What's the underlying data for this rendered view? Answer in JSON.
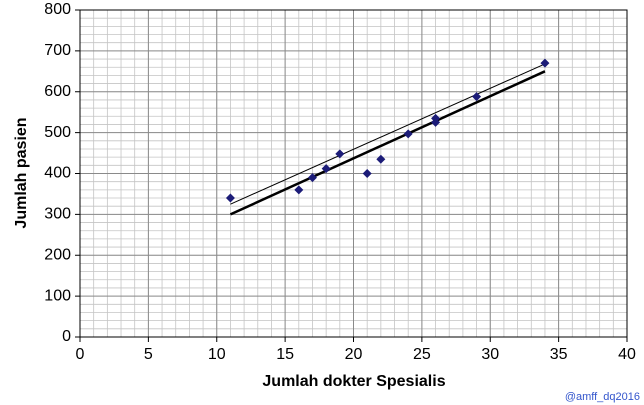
{
  "chart_data": {
    "type": "scatter",
    "x_label": "Jumlah dokter Spesialis",
    "y_label": "Jumlah pasien",
    "annotation": "@amff_dq2016",
    "x": [
      11,
      16,
      17,
      18,
      19,
      21,
      22,
      24,
      26,
      26,
      29,
      34
    ],
    "values": [
      340,
      360,
      390,
      412,
      448,
      400,
      435,
      497,
      525,
      535,
      588,
      670
    ],
    "color": "#1c1c78",
    "trend_lines": [
      {
        "x": [
          11,
          34
        ],
        "values": [
          300,
          650
        ],
        "color": "#000000"
      },
      {
        "x": [
          11,
          34
        ],
        "values": [
          325,
          668
        ],
        "color": "#000000"
      }
    ],
    "xlim": [
      0,
      40
    ],
    "ylim": [
      0,
      800
    ],
    "xticks": [
      0,
      5,
      10,
      15,
      20,
      25,
      30,
      35,
      40
    ],
    "yticks": [
      0,
      100,
      200,
      300,
      400,
      500,
      600,
      700,
      800
    ],
    "grid": true,
    "minor_grid": {
      "x": 1,
      "y": 20
    }
  }
}
